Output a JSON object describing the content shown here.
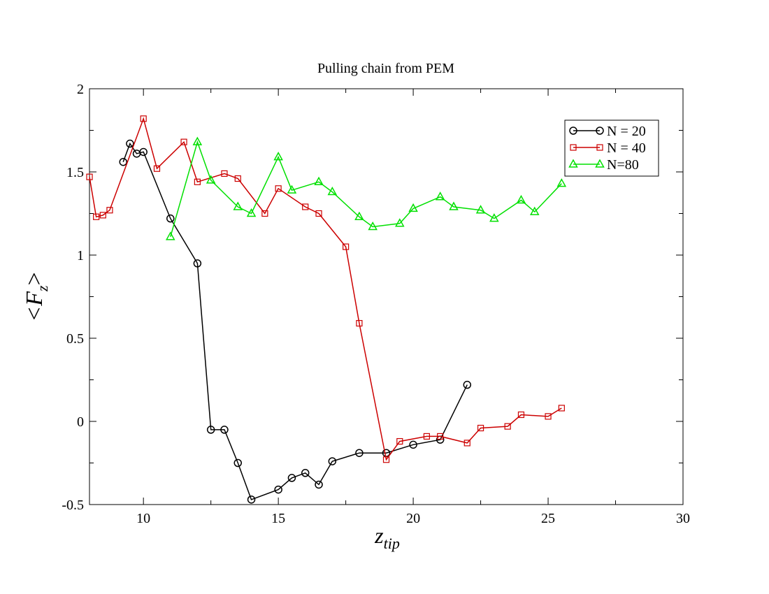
{
  "chart_data": {
    "type": "line",
    "title": "Pulling chain from PEM",
    "xlabel": "z",
    "xlabel_sub": "tip",
    "ylabel": "<F",
    "ylabel_sub": "z",
    "ylabel_close": ">",
    "xlim": [
      8,
      30
    ],
    "ylim": [
      -0.5,
      2
    ],
    "xticks": [
      10,
      15,
      20,
      25,
      30
    ],
    "yticks": [
      -0.5,
      0,
      0.5,
      1,
      1.5,
      2
    ],
    "xtick_labels": [
      "10",
      "15",
      "20",
      "25",
      "30"
    ],
    "ytick_labels": [
      "-0.5",
      "0",
      "0.5",
      "1",
      "1.5",
      "2"
    ],
    "grid": false,
    "legend_position": "top-right",
    "series": [
      {
        "name": "N = 20",
        "color": "#000000",
        "marker": "circle",
        "points": [
          [
            9.25,
            1.56
          ],
          [
            9.5,
            1.67
          ],
          [
            9.75,
            1.61
          ],
          [
            10.0,
            1.62
          ],
          [
            11.0,
            1.22
          ],
          [
            12.0,
            0.95
          ],
          [
            12.5,
            -0.05
          ],
          [
            13.0,
            -0.05
          ],
          [
            13.5,
            -0.25
          ],
          [
            14.0,
            -0.47
          ],
          [
            15.0,
            -0.41
          ],
          [
            15.5,
            -0.34
          ],
          [
            16.0,
            -0.31
          ],
          [
            16.5,
            -0.38
          ],
          [
            17.0,
            -0.24
          ],
          [
            18.0,
            -0.19
          ],
          [
            19.0,
            -0.19
          ],
          [
            20.0,
            -0.14
          ],
          [
            21.0,
            -0.11
          ],
          [
            22.0,
            0.22
          ]
        ]
      },
      {
        "name": "N = 40",
        "color": "#cc0000",
        "marker": "square",
        "points": [
          [
            8.0,
            1.47
          ],
          [
            8.25,
            1.23
          ],
          [
            8.5,
            1.24
          ],
          [
            8.75,
            1.27
          ],
          [
            10.0,
            1.82
          ],
          [
            10.5,
            1.52
          ],
          [
            11.5,
            1.68
          ],
          [
            12.0,
            1.44
          ],
          [
            13.0,
            1.49
          ],
          [
            13.5,
            1.46
          ],
          [
            14.5,
            1.25
          ],
          [
            15.0,
            1.4
          ],
          [
            16.0,
            1.29
          ],
          [
            16.5,
            1.25
          ],
          [
            17.5,
            1.05
          ],
          [
            18.0,
            0.59
          ],
          [
            19.0,
            -0.23
          ],
          [
            19.5,
            -0.12
          ],
          [
            20.5,
            -0.09
          ],
          [
            21.0,
            -0.09
          ],
          [
            22.0,
            -0.13
          ],
          [
            22.5,
            -0.04
          ],
          [
            23.5,
            -0.03
          ],
          [
            24.0,
            0.04
          ],
          [
            25.0,
            0.03
          ],
          [
            25.5,
            0.08
          ]
        ]
      },
      {
        "name": "N=80",
        "color": "#00e000",
        "marker": "triangle",
        "points": [
          [
            11.0,
            1.11
          ],
          [
            12.0,
            1.68
          ],
          [
            12.5,
            1.45
          ],
          [
            13.5,
            1.29
          ],
          [
            14.0,
            1.25
          ],
          [
            15.0,
            1.59
          ],
          [
            15.5,
            1.39
          ],
          [
            16.5,
            1.44
          ],
          [
            17.0,
            1.38
          ],
          [
            18.0,
            1.23
          ],
          [
            18.5,
            1.17
          ],
          [
            19.5,
            1.19
          ],
          [
            20.0,
            1.28
          ],
          [
            21.0,
            1.35
          ],
          [
            21.5,
            1.29
          ],
          [
            22.5,
            1.27
          ],
          [
            23.0,
            1.22
          ],
          [
            24.0,
            1.33
          ],
          [
            24.5,
            1.26
          ],
          [
            25.5,
            1.43
          ]
        ]
      }
    ]
  }
}
